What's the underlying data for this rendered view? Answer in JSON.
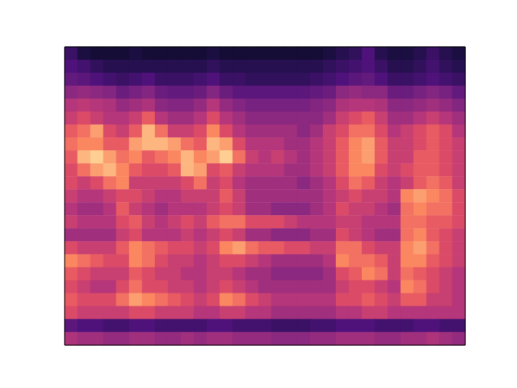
{
  "chart_data": {
    "type": "heatmap",
    "tick_labels": false,
    "color_range": [
      0,
      100
    ],
    "cells": [
      [
        20,
        12,
        10,
        10,
        10,
        12,
        10,
        10,
        10,
        10,
        10,
        12,
        10,
        10,
        10,
        10,
        10,
        10,
        10,
        10,
        12,
        15,
        18,
        25,
        15,
        12,
        12,
        15,
        20,
        15,
        12
      ],
      [
        25,
        22,
        18,
        15,
        15,
        15,
        15,
        15,
        15,
        15,
        15,
        18,
        15,
        15,
        15,
        15,
        15,
        15,
        15,
        15,
        18,
        20,
        22,
        25,
        20,
        15,
        15,
        18,
        22,
        18,
        15
      ],
      [
        30,
        28,
        25,
        22,
        20,
        22,
        25,
        20,
        20,
        20,
        22,
        25,
        20,
        20,
        18,
        18,
        18,
        18,
        18,
        20,
        22,
        25,
        28,
        30,
        25,
        20,
        20,
        22,
        25,
        22,
        20
      ],
      [
        40,
        42,
        40,
        38,
        32,
        35,
        38,
        32,
        30,
        30,
        32,
        38,
        32,
        28,
        28,
        28,
        28,
        28,
        28,
        30,
        32,
        40,
        42,
        40,
        40,
        32,
        32,
        35,
        38,
        35,
        30
      ],
      [
        50,
        52,
        50,
        48,
        42,
        45,
        48,
        40,
        38,
        38,
        42,
        50,
        42,
        38,
        35,
        35,
        35,
        35,
        35,
        38,
        40,
        48,
        50,
        50,
        48,
        40,
        40,
        42,
        45,
        42,
        38
      ],
      [
        55,
        60,
        55,
        50,
        50,
        55,
        65,
        50,
        45,
        45,
        50,
        60,
        50,
        45,
        40,
        40,
        40,
        40,
        40,
        40,
        45,
        55,
        60,
        65,
        55,
        45,
        45,
        50,
        55,
        50,
        45
      ],
      [
        65,
        70,
        80,
        60,
        55,
        65,
        85,
        70,
        55,
        55,
        60,
        75,
        60,
        50,
        45,
        45,
        45,
        45,
        40,
        45,
        55,
        60,
        70,
        70,
        60,
        50,
        55,
        60,
        65,
        60,
        50
      ],
      [
        70,
        75,
        75,
        65,
        65,
        80,
        85,
        85,
        80,
        70,
        65,
        85,
        80,
        60,
        50,
        50,
        50,
        45,
        45,
        50,
        55,
        65,
        75,
        80,
        65,
        55,
        55,
        60,
        65,
        60,
        55
      ],
      [
        65,
        85,
        90,
        80,
        70,
        75,
        65,
        70,
        75,
        85,
        75,
        80,
        90,
        70,
        55,
        50,
        55,
        50,
        45,
        50,
        55,
        65,
        75,
        80,
        65,
        55,
        55,
        65,
        65,
        60,
        55
      ],
      [
        60,
        70,
        80,
        85,
        75,
        65,
        60,
        60,
        65,
        85,
        80,
        60,
        65,
        55,
        50,
        50,
        50,
        45,
        45,
        50,
        55,
        65,
        75,
        75,
        60,
        55,
        60,
        65,
        65,
        60,
        55
      ],
      [
        60,
        55,
        60,
        70,
        75,
        55,
        55,
        55,
        55,
        60,
        70,
        55,
        60,
        50,
        45,
        45,
        45,
        45,
        40,
        45,
        50,
        60,
        70,
        65,
        55,
        50,
        55,
        65,
        70,
        65,
        55
      ],
      [
        55,
        50,
        50,
        55,
        60,
        60,
        55,
        50,
        50,
        55,
        55,
        55,
        65,
        55,
        45,
        45,
        45,
        45,
        45,
        45,
        50,
        55,
        60,
        55,
        55,
        50,
        75,
        80,
        75,
        70,
        60
      ],
      [
        50,
        45,
        45,
        50,
        65,
        55,
        50,
        45,
        50,
        50,
        50,
        55,
        60,
        55,
        45,
        45,
        40,
        40,
        40,
        45,
        50,
        60,
        55,
        55,
        50,
        45,
        70,
        75,
        70,
        70,
        60
      ],
      [
        55,
        50,
        50,
        50,
        60,
        65,
        55,
        50,
        55,
        60,
        55,
        65,
        70,
        70,
        60,
        60,
        60,
        55,
        50,
        50,
        50,
        55,
        55,
        50,
        50,
        50,
        70,
        70,
        65,
        65,
        60
      ],
      [
        45,
        45,
        45,
        45,
        55,
        60,
        50,
        50,
        50,
        55,
        50,
        55,
        60,
        55,
        45,
        45,
        40,
        40,
        40,
        45,
        45,
        60,
        55,
        50,
        45,
        45,
        70,
        75,
        65,
        60,
        55
      ],
      [
        60,
        55,
        55,
        55,
        65,
        75,
        70,
        65,
        60,
        60,
        55,
        60,
        75,
        80,
        70,
        65,
        65,
        60,
        60,
        55,
        55,
        70,
        70,
        60,
        55,
        55,
        75,
        80,
        70,
        60,
        55
      ],
      [
        75,
        70,
        65,
        60,
        60,
        75,
        70,
        60,
        55,
        55,
        50,
        55,
        60,
        60,
        55,
        50,
        45,
        45,
        45,
        45,
        50,
        75,
        70,
        70,
        65,
        55,
        75,
        75,
        65,
        60,
        55
      ],
      [
        65,
        60,
        55,
        55,
        55,
        65,
        60,
        55,
        55,
        50,
        50,
        55,
        55,
        50,
        45,
        45,
        40,
        40,
        40,
        40,
        45,
        60,
        65,
        75,
        70,
        55,
        70,
        65,
        60,
        55,
        50
      ],
      [
        60,
        55,
        50,
        50,
        60,
        70,
        60,
        60,
        55,
        55,
        50,
        55,
        60,
        55,
        50,
        45,
        45,
        45,
        45,
        45,
        45,
        55,
        60,
        60,
        55,
        50,
        75,
        70,
        60,
        55,
        50
      ],
      [
        65,
        60,
        60,
        60,
        70,
        80,
        75,
        70,
        65,
        60,
        55,
        60,
        75,
        70,
        60,
        55,
        50,
        50,
        50,
        50,
        50,
        60,
        60,
        65,
        60,
        55,
        65,
        65,
        55,
        55,
        50
      ],
      [
        60,
        55,
        55,
        55,
        55,
        60,
        60,
        55,
        55,
        55,
        50,
        50,
        55,
        55,
        50,
        50,
        45,
        45,
        45,
        45,
        45,
        50,
        50,
        55,
        55,
        50,
        50,
        50,
        50,
        50,
        50
      ],
      [
        28,
        25,
        25,
        22,
        22,
        25,
        25,
        22,
        22,
        22,
        22,
        25,
        25,
        22,
        22,
        22,
        20,
        20,
        20,
        22,
        22,
        25,
        25,
        25,
        22,
        22,
        22,
        25,
        25,
        22,
        22
      ],
      [
        48,
        45,
        45,
        42,
        42,
        45,
        45,
        42,
        42,
        45,
        42,
        45,
        45,
        42,
        42,
        42,
        40,
        40,
        40,
        42,
        42,
        45,
        45,
        45,
        42,
        42,
        45,
        45,
        48,
        45,
        42
      ]
    ]
  }
}
